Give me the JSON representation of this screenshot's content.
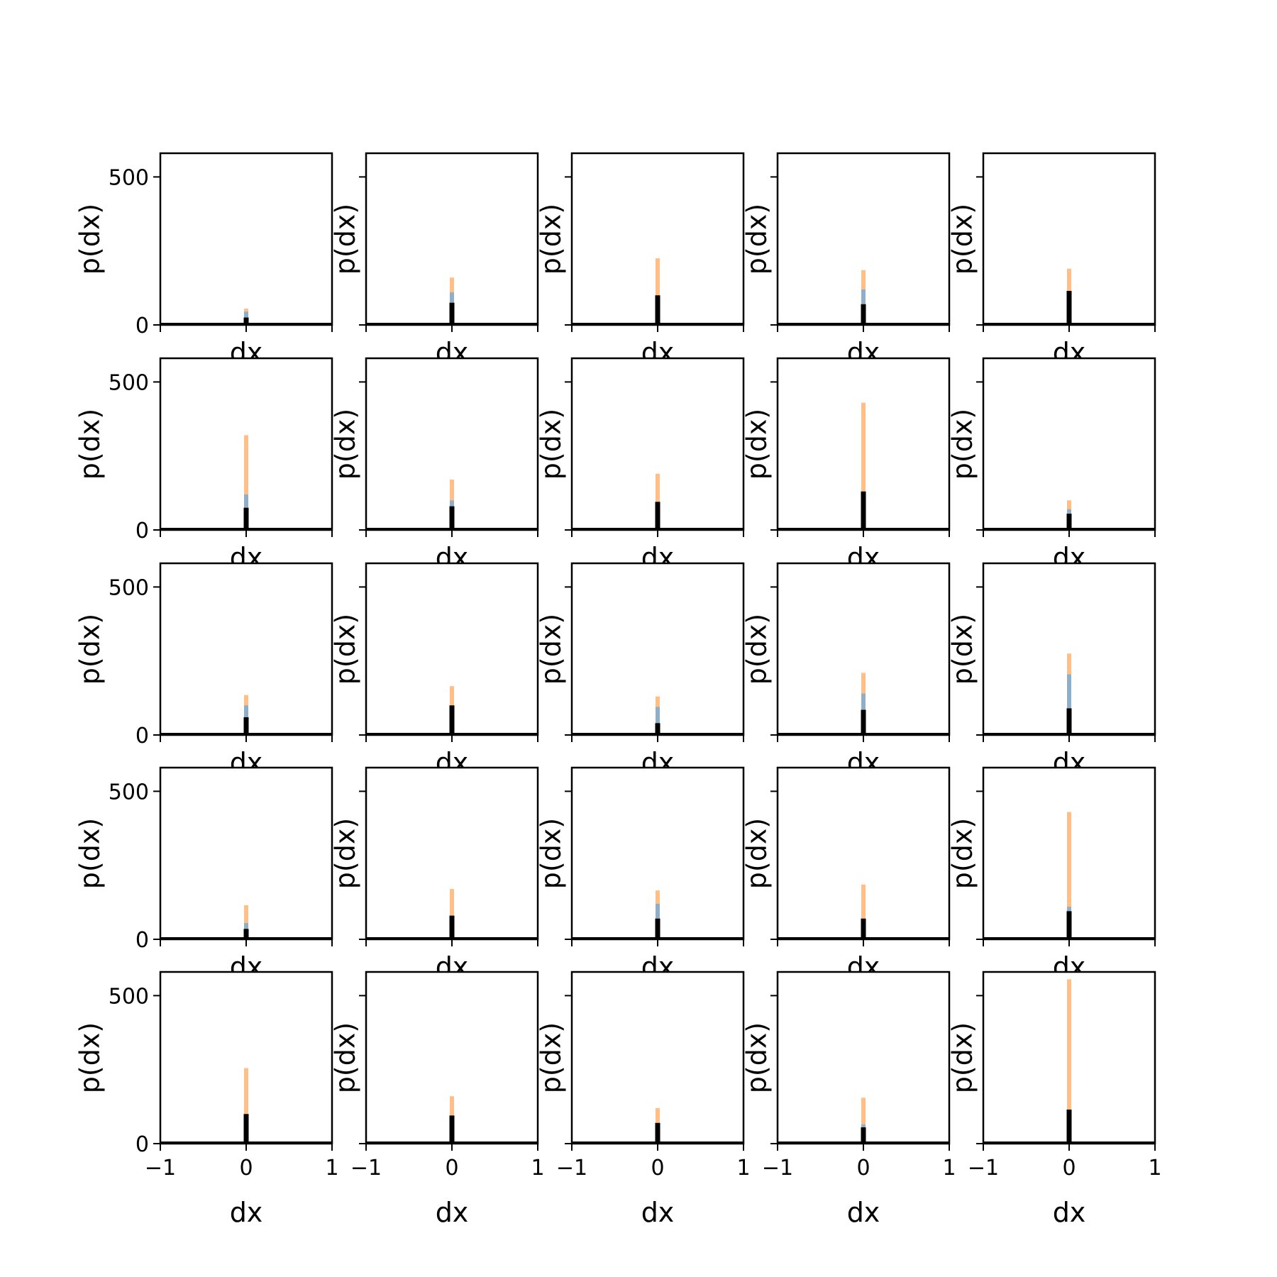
{
  "chart_data": {
    "type": "bar",
    "layout": {
      "rows": 5,
      "cols": 5,
      "sharex": true,
      "sharey": true
    },
    "xlabel": "dx",
    "ylabel": "p(dx)",
    "xlim": [
      -1,
      1
    ],
    "ylim": [
      0,
      580
    ],
    "xticks": [
      -1,
      0,
      1
    ],
    "xtick_labels": [
      "−1",
      "0",
      "1"
    ],
    "yticks": [
      0,
      500
    ],
    "ytick_labels": [
      "0",
      "500"
    ],
    "colors": {
      "orange": "#ffbf86",
      "blue": "#8fafc8",
      "black": "#000000"
    },
    "panels": [
      {
        "orange": 55,
        "blue": 45,
        "black": 25
      },
      {
        "orange": 160,
        "blue": 110,
        "black": 75
      },
      {
        "orange": 225,
        "blue": 60,
        "black": 100
      },
      {
        "orange": 185,
        "blue": 120,
        "black": 70
      },
      {
        "orange": 190,
        "blue": 100,
        "black": 115
      },
      {
        "orange": 320,
        "blue": 120,
        "black": 75
      },
      {
        "orange": 170,
        "blue": 100,
        "black": 80
      },
      {
        "orange": 190,
        "blue": 60,
        "black": 95
      },
      {
        "orange": 430,
        "blue": 110,
        "black": 130
      },
      {
        "orange": 100,
        "blue": 70,
        "black": 55
      },
      {
        "orange": 135,
        "blue": 100,
        "black": 60
      },
      {
        "orange": 165,
        "blue": 70,
        "black": 100
      },
      {
        "orange": 130,
        "blue": 95,
        "black": 40
      },
      {
        "orange": 210,
        "blue": 140,
        "black": 85
      },
      {
        "orange": 275,
        "blue": 205,
        "black": 90
      },
      {
        "orange": 115,
        "blue": 55,
        "black": 35
      },
      {
        "orange": 170,
        "blue": 60,
        "black": 80
      },
      {
        "orange": 165,
        "blue": 120,
        "black": 70
      },
      {
        "orange": 185,
        "blue": 50,
        "black": 70
      },
      {
        "orange": 430,
        "blue": 110,
        "black": 95
      },
      {
        "orange": 255,
        "blue": 70,
        "black": 100
      },
      {
        "orange": 160,
        "blue": 60,
        "black": 95
      },
      {
        "orange": 120,
        "blue": 60,
        "black": 70
      },
      {
        "orange": 155,
        "blue": 65,
        "black": 55
      },
      {
        "orange": 555,
        "blue": 110,
        "black": 115
      }
    ]
  }
}
